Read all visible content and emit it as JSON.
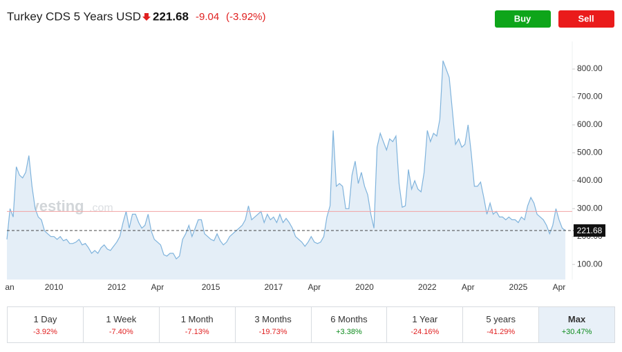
{
  "header": {
    "buttons": [
      "Buy",
      "Sell"
    ],
    "watermark_brand": "Investing",
    "watermark_domain": ".com"
  },
  "chart_data": {
    "type": "area",
    "title": "Turkey CDS 5 Years USD",
    "last": 221.68,
    "change": -9.04,
    "change_percent": "(-3.92%)",
    "categories": [
      "an",
      null,
      null,
      null,
      null,
      null,
      null,
      null,
      null,
      null,
      null,
      null,
      null,
      null,
      null,
      "2010",
      null,
      null,
      null,
      null,
      null,
      null,
      null,
      null,
      null,
      null,
      null,
      null,
      null,
      null,
      null,
      null,
      null,
      null,
      null,
      "2012",
      null,
      null,
      null,
      null,
      null,
      null,
      null,
      null,
      null,
      null,
      null,
      null,
      "Apr",
      null,
      null,
      null,
      null,
      null,
      null,
      null,
      null,
      null,
      null,
      null,
      null,
      null,
      null,
      null,
      null,
      "2015",
      null,
      null,
      null,
      null,
      null,
      null,
      null,
      null,
      null,
      null,
      null,
      null,
      null,
      null,
      null,
      null,
      null,
      null,
      null,
      "2017",
      null,
      null,
      null,
      null,
      null,
      null,
      null,
      null,
      null,
      null,
      null,
      null,
      "Apr",
      null,
      null,
      null,
      null,
      null,
      null,
      null,
      null,
      null,
      null,
      null,
      null,
      null,
      null,
      null,
      "2020",
      null,
      null,
      null,
      null,
      null,
      null,
      null,
      null,
      null,
      null,
      null,
      null,
      null,
      null,
      null,
      null,
      null,
      null,
      null,
      "2022",
      null,
      null,
      null,
      null,
      null,
      null,
      null,
      null,
      null,
      null,
      null,
      null,
      "Apr",
      null,
      null,
      null,
      null,
      null,
      null,
      null,
      null,
      null,
      null,
      null,
      null,
      null,
      null,
      null,
      "2025",
      null,
      null,
      null,
      null,
      null,
      null,
      null,
      null,
      null,
      null,
      null,
      null,
      "Apr",
      null,
      null
    ],
    "series": [
      {
        "color": "#7fb3dc",
        "fill": "#e4eef7",
        "values": [
          190,
          300,
          270,
          450,
          420,
          410,
          430,
          490,
          380,
          300,
          270,
          260,
          220,
          210,
          200,
          200,
          190,
          200,
          185,
          190,
          175,
          175,
          180,
          190,
          170,
          175,
          160,
          140,
          150,
          140,
          160,
          170,
          155,
          150,
          165,
          180,
          200,
          250,
          290,
          230,
          280,
          280,
          250,
          230,
          240,
          280,
          220,
          190,
          180,
          170,
          135,
          130,
          140,
          140,
          120,
          130,
          190,
          210,
          240,
          200,
          230,
          260,
          260,
          210,
          200,
          190,
          185,
          210,
          185,
          170,
          180,
          200,
          210,
          220,
          230,
          240,
          260,
          310,
          260,
          270,
          280,
          290,
          250,
          280,
          260,
          270,
          250,
          280,
          250,
          265,
          250,
          230,
          200,
          190,
          180,
          165,
          180,
          200,
          180,
          175,
          180,
          200,
          270,
          310,
          580,
          380,
          390,
          380,
          300,
          300,
          420,
          470,
          390,
          430,
          380,
          350,
          280,
          230,
          520,
          570,
          540,
          510,
          550,
          540,
          560,
          390,
          305,
          310,
          440,
          370,
          400,
          370,
          360,
          430,
          580,
          540,
          570,
          560,
          620,
          830,
          800,
          770,
          650,
          530,
          550,
          520,
          530,
          600,
          500,
          380,
          380,
          395,
          340,
          280,
          320,
          280,
          290,
          270,
          270,
          260,
          270,
          260,
          260,
          250,
          270,
          260,
          310,
          340,
          320,
          280,
          270,
          260,
          240,
          210,
          240,
          300,
          260,
          230,
          222
        ]
      }
    ],
    "ylim": [
      46,
      899
    ],
    "yticks": [
      {
        "value": 100,
        "label": "100.00"
      },
      {
        "value": 200,
        "label": "200.00"
      },
      {
        "value": 300,
        "label": "300.00"
      },
      {
        "value": 400,
        "label": "400.00"
      },
      {
        "value": 500,
        "label": "500.00"
      },
      {
        "value": 600,
        "label": "600.00"
      },
      {
        "value": 700,
        "label": "700.00"
      },
      {
        "value": 800,
        "label": "800.00"
      }
    ],
    "reference_line": {
      "value": 290,
      "color": "#f2a3a3"
    },
    "periods": [
      {
        "label": "1 Day",
        "change": "-3.92%"
      },
      {
        "label": "1 Week",
        "change": "-7.40%"
      },
      {
        "label": "1 Month",
        "change": "-7.13%"
      },
      {
        "label": "3 Months",
        "change": "-19.73%"
      },
      {
        "label": "6 Months",
        "change": "+3.38%"
      },
      {
        "label": "1 Year",
        "change": "-24.16%"
      },
      {
        "label": "5 years",
        "change": "-41.29%"
      },
      {
        "label": "Max",
        "change": "+30.47%"
      }
    ]
  }
}
